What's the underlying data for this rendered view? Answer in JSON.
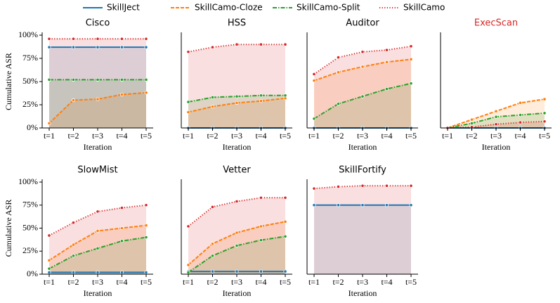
{
  "legend": [
    {
      "name": "SkillJect",
      "color": "#1f77b4",
      "linestyle": "solid"
    },
    {
      "name": "SkillCamo-Cloze",
      "color": "#ff7f0e",
      "linestyle": "dashed"
    },
    {
      "name": "SkillCamo-Split",
      "color": "#2ca02c",
      "linestyle": "dashdot"
    },
    {
      "name": "SkillCamo",
      "color": "#d62728",
      "linestyle": "dotted"
    }
  ],
  "chart_data": [
    {
      "type": "line",
      "title": "Cisco",
      "xlabel": "Iteration",
      "ylabel": "Cumulative ASR",
      "categories": [
        "t=1",
        "t=2",
        "t=3",
        "t=4",
        "t=5"
      ],
      "ylim": [
        0,
        100
      ],
      "yticks": [
        {
          "value": 0,
          "label": "0%"
        },
        {
          "value": 25,
          "label": "25%"
        },
        {
          "value": 50,
          "label": "50%"
        },
        {
          "value": 75,
          "label": "75%"
        },
        {
          "value": 100,
          "label": "100%"
        }
      ],
      "series": [
        {
          "values": [
            87,
            87,
            87,
            87,
            87
          ]
        },
        {
          "values": [
            5,
            30,
            31,
            36,
            38
          ]
        },
        {
          "values": [
            52,
            52,
            52,
            52,
            52
          ]
        },
        {
          "values": [
            96,
            96,
            96,
            96,
            96
          ]
        }
      ]
    },
    {
      "type": "line",
      "title": "HSS",
      "xlabel": "Iteration",
      "categories": [
        "t=1",
        "t=2",
        "t=3",
        "t=4",
        "t=5"
      ],
      "ylim": [
        0,
        100
      ],
      "series": [
        {
          "values": [
            0,
            0,
            0,
            0,
            0
          ]
        },
        {
          "values": [
            17,
            23,
            27,
            29,
            32
          ]
        },
        {
          "values": [
            28,
            33,
            34,
            35,
            35
          ]
        },
        {
          "values": [
            82,
            87,
            90,
            90,
            90
          ]
        }
      ]
    },
    {
      "type": "line",
      "title": "Auditor",
      "xlabel": "Iteration",
      "categories": [
        "t=1",
        "t=2",
        "t=3",
        "t=4",
        "t=5"
      ],
      "ylim": [
        0,
        100
      ],
      "series": [
        {
          "values": [
            0,
            0,
            0,
            0,
            0
          ]
        },
        {
          "values": [
            51,
            60,
            66,
            71,
            74
          ]
        },
        {
          "values": [
            10,
            26,
            34,
            42,
            48
          ]
        },
        {
          "values": [
            58,
            76,
            82,
            84,
            88
          ]
        }
      ]
    },
    {
      "type": "line",
      "title": "ExecScan",
      "title_color": "#d62728",
      "xlabel": "Iteration",
      "categories": [
        "t=1",
        "t=2",
        "t=3",
        "t=4",
        "t=5"
      ],
      "ylim": [
        0,
        100
      ],
      "series": [
        {
          "values": [
            0,
            0,
            0,
            0,
            0
          ]
        },
        {
          "values": [
            0,
            9,
            18,
            27,
            31
          ]
        },
        {
          "values": [
            0,
            5,
            12,
            14,
            16
          ]
        },
        {
          "values": [
            0,
            1,
            4,
            6,
            7
          ]
        }
      ]
    },
    {
      "type": "line",
      "title": "SlowMist",
      "xlabel": "Iteration",
      "ylabel": "Cumulative ASR",
      "categories": [
        "t=1",
        "t=2",
        "t=3",
        "t=4",
        "t=5"
      ],
      "ylim": [
        0,
        100
      ],
      "yticks": [
        {
          "value": 0,
          "label": "0%"
        },
        {
          "value": 25,
          "label": "25%"
        },
        {
          "value": 50,
          "label": "50%"
        },
        {
          "value": 75,
          "label": "75%"
        },
        {
          "value": 100,
          "label": "100%"
        }
      ],
      "series": [
        {
          "values": [
            2,
            2,
            2,
            2,
            2
          ]
        },
        {
          "values": [
            15,
            32,
            47,
            50,
            53
          ]
        },
        {
          "values": [
            6,
            20,
            28,
            36,
            40
          ]
        },
        {
          "values": [
            42,
            56,
            68,
            72,
            75
          ]
        }
      ]
    },
    {
      "type": "line",
      "title": "Vetter",
      "xlabel": "Iteration",
      "categories": [
        "t=1",
        "t=2",
        "t=3",
        "t=4",
        "t=5"
      ],
      "ylim": [
        0,
        100
      ],
      "series": [
        {
          "values": [
            3,
            3,
            3,
            3,
            3
          ]
        },
        {
          "values": [
            10,
            33,
            45,
            52,
            57
          ]
        },
        {
          "values": [
            2,
            20,
            31,
            37,
            41
          ]
        },
        {
          "values": [
            52,
            73,
            79,
            83,
            83
          ]
        }
      ]
    },
    {
      "type": "line",
      "title": "SkillFortify",
      "xlabel": "Iteration",
      "categories": [
        "t=1",
        "t=2",
        "t=3",
        "t=4",
        "t=5"
      ],
      "ylim": [
        0,
        100
      ],
      "series": [
        {
          "values": [
            75,
            75,
            75,
            75,
            75
          ]
        },
        {
          "values": [
            null,
            null,
            null,
            null,
            null
          ]
        },
        {
          "values": [
            null,
            null,
            null,
            null,
            null
          ]
        },
        {
          "values": [
            93,
            95,
            96,
            96,
            96
          ]
        }
      ]
    }
  ]
}
